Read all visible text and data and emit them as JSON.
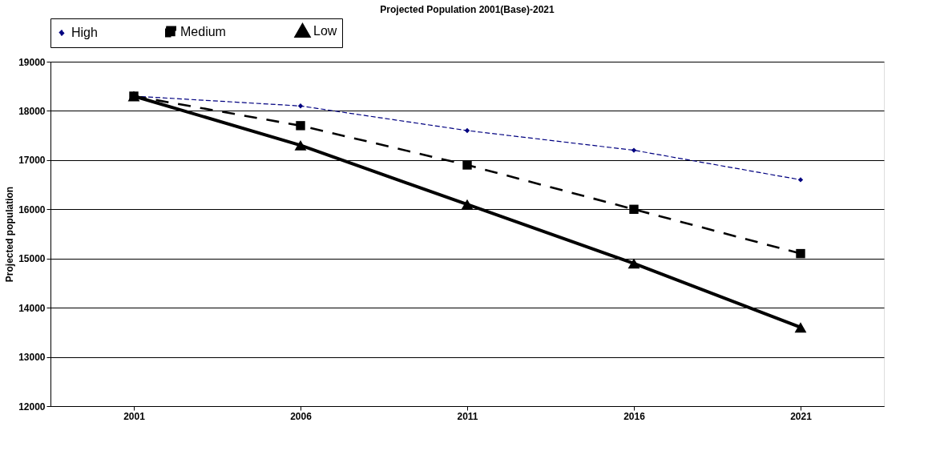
{
  "chart_data": {
    "type": "line",
    "title": "Projected Population 2001(Base)-2021",
    "ylabel": "Projected population",
    "categories": [
      "2001",
      "2006",
      "2011",
      "2016",
      "2021"
    ],
    "series": [
      {
        "name": "High",
        "color": "#000080",
        "marker": "diamond",
        "line_style": "dashed",
        "values": [
          18300,
          18100,
          17600,
          17200,
          16600
        ]
      },
      {
        "name": "Medium",
        "color": "#000000",
        "marker": "square",
        "line_style": "dashed",
        "values": [
          18300,
          17700,
          16900,
          16000,
          15100
        ]
      },
      {
        "name": "Low",
        "color": "#000000",
        "marker": "triangle",
        "line_style": "solid",
        "values": [
          18300,
          17300,
          16100,
          14900,
          13600
        ]
      }
    ],
    "ylim": [
      12000,
      19000
    ],
    "yticks": [
      12000,
      13000,
      14000,
      15000,
      16000,
      17000,
      18000,
      19000
    ],
    "grid": "y",
    "legend": "top"
  }
}
